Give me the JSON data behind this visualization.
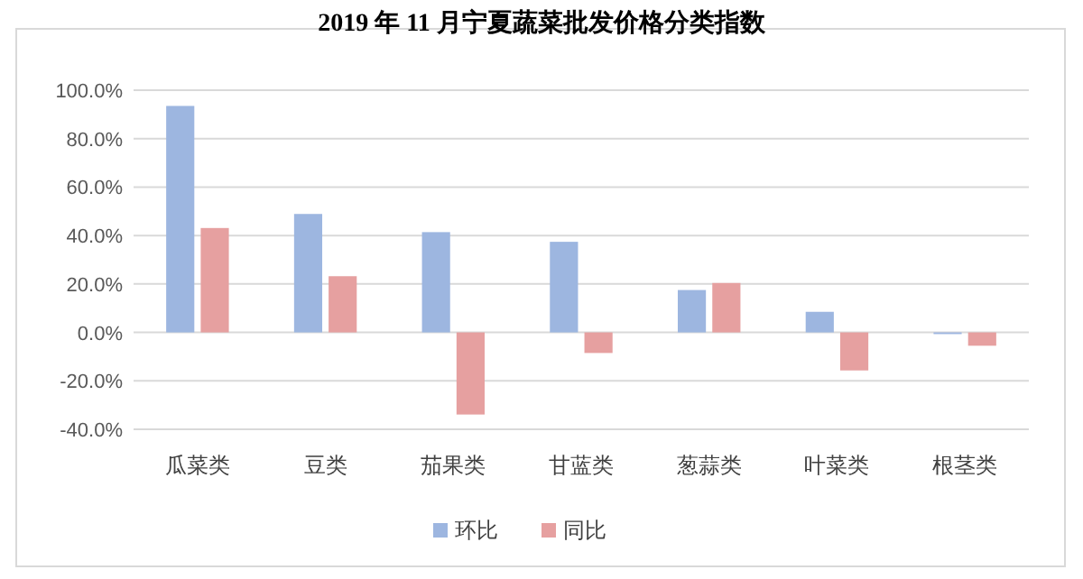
{
  "chart_data": {
    "type": "bar",
    "title": "2019 年 11 月宁夏蔬菜批发价格分类指数",
    "categories": [
      "瓜菜类",
      "豆类",
      "茄果类",
      "甘蓝类",
      "葱蒜类",
      "叶菜类",
      "根茎类"
    ],
    "series": [
      {
        "name": "环比",
        "color": "#9db6e0",
        "values": [
          93.5,
          48.9,
          41.4,
          37.4,
          17.5,
          8.5,
          -0.7
        ]
      },
      {
        "name": "同比",
        "color": "#e6a0a0",
        "values": [
          43.1,
          23.2,
          -33.9,
          -8.5,
          20.4,
          -15.7,
          -5.5
        ]
      }
    ],
    "ylim": [
      -40,
      100
    ],
    "yticks": [
      {
        "value": -40,
        "label": "-40.0%"
      },
      {
        "value": -20,
        "label": "-20.0%"
      },
      {
        "value": 0,
        "label": "0.0%"
      },
      {
        "value": 20,
        "label": "20.0%"
      },
      {
        "value": 40,
        "label": "40.0%"
      },
      {
        "value": 60,
        "label": "60.0%"
      },
      {
        "value": 80,
        "label": "80.0%"
      },
      {
        "value": 100,
        "label": "100.0%"
      }
    ],
    "grid": "y",
    "legend": "bottom"
  }
}
